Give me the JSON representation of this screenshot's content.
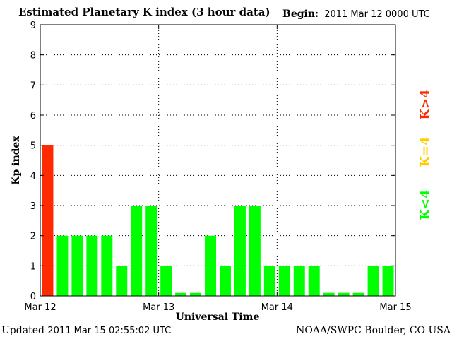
{
  "header": {
    "title": "Estimated Planetary K index (3 hour data)",
    "begin_label": "Begin:",
    "begin_value": "2011 Mar 12 0000 UTC"
  },
  "footer": {
    "updated_label": "Updated",
    "updated_value": "2011 Mar 15 02:55:02 UTC",
    "source": "NOAA/SWPC Boulder, CO USA"
  },
  "colors": {
    "below_4": "#00ff00",
    "equal_4": "#ffcc00",
    "above_4": "#ff2a00"
  },
  "legend": {
    "below": "K<4",
    "equal": "K=4",
    "above": "K>4"
  },
  "chart_data": {
    "type": "bar",
    "title": "Estimated Planetary K index (3 hour data)",
    "xlabel": "Universal Time",
    "ylabel": "Kp index",
    "ylim": [
      0,
      9
    ],
    "yticks": [
      "0",
      "1",
      "2",
      "3",
      "4",
      "5",
      "6",
      "7",
      "8",
      "9"
    ],
    "xticks": [
      "Mar 12",
      "Mar 13",
      "Mar 14",
      "Mar 15"
    ],
    "grid": true,
    "values": [
      5,
      2,
      2,
      2,
      2,
      1,
      3,
      3,
      1,
      0.1,
      0.1,
      2,
      1,
      3,
      3,
      1,
      1,
      1,
      1,
      0.1,
      0.1,
      0.1,
      1,
      1
    ]
  }
}
